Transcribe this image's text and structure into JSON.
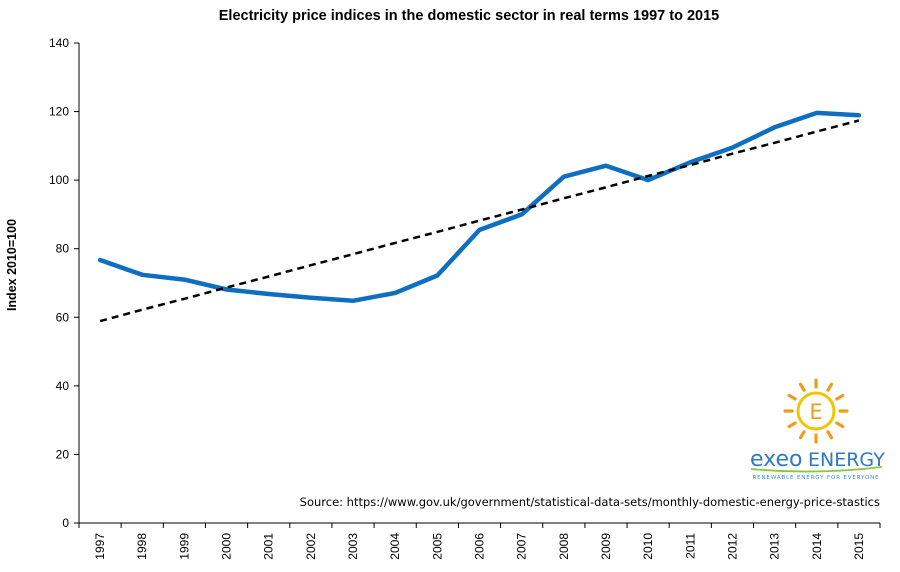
{
  "chart_data": {
    "type": "line",
    "title": "Electricity price indices in the domestic sector in real terms 1997 to 2015",
    "ylabel": "Index 2010=100",
    "xlabel": "",
    "ylim": [
      0,
      140
    ],
    "y_ticks": [
      "0",
      "20",
      "40",
      "60",
      "80",
      "100",
      "120",
      "140"
    ],
    "grid": false,
    "categories": [
      "1997",
      "1998",
      "1999",
      "2000",
      "2001",
      "2002",
      "2003",
      "2004",
      "2005",
      "2006",
      "2007",
      "2008",
      "2009",
      "2010",
      "2011",
      "2012",
      "2013",
      "2014",
      "2015"
    ],
    "series": [
      {
        "values": [
          76.7,
          72.4,
          71.0,
          68.1,
          66.8,
          65.7,
          64.8,
          67.1,
          72.2,
          85.5,
          90.0,
          101.0,
          104.2,
          100.0,
          105.2,
          109.5,
          115.4,
          119.6,
          118.9
        ],
        "color": "#0e6fc0",
        "style": "solid"
      },
      {
        "values": [
          58.9,
          62.2,
          65.4,
          68.7,
          71.9,
          75.2,
          78.4,
          81.7,
          84.9,
          88.2,
          91.4,
          94.7,
          97.9,
          101.2,
          104.4,
          107.7,
          110.9,
          114.2,
          117.4
        ],
        "color": "#000000",
        "style": "dashed",
        "role": "trendline"
      }
    ]
  },
  "source_text": "Source: https://www.gov.uk/government/statistical-data-sets/monthly-domestic-energy-price-stastics",
  "logo": {
    "letter": "E",
    "word1": "exeo",
    "word2": "ENERGY",
    "tagline": "RENEWABLE ENERGY FOR EVERYONE",
    "sun_color": "#f5c400",
    "ray_color": "#f29a1f",
    "text_color": "#2e7bc4",
    "swoosh_color": "#8cc63f"
  }
}
